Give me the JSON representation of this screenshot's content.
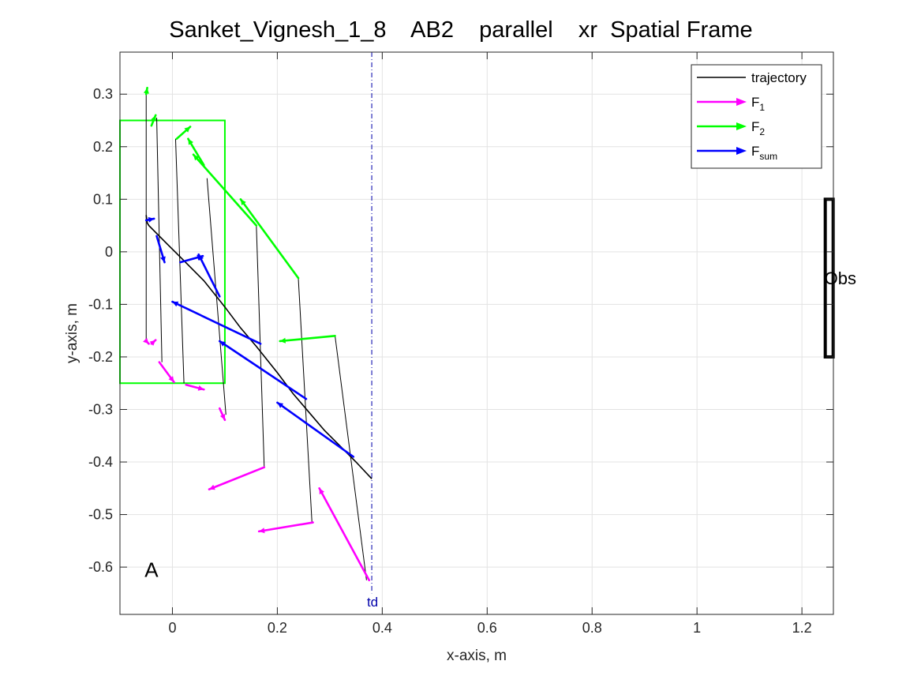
{
  "chart_data": {
    "type": "line",
    "title": "Sanket_Vignesh_1_8    AB2    parallel    xr  Spatial Frame",
    "xlabel": "x-axis, m",
    "ylabel": "y-axis, m",
    "xlim": [
      -0.1,
      1.26
    ],
    "ylim": [
      -0.69,
      0.38
    ],
    "xticks": [
      0,
      0.2,
      0.4,
      0.6,
      0.8,
      1,
      1.2
    ],
    "xtick_labels": [
      "0",
      "0.2",
      "0.4",
      "0.6",
      "0.8",
      "1",
      "1.2"
    ],
    "yticks": [
      0.3,
      0.2,
      0.1,
      0,
      -0.1,
      -0.2,
      -0.3,
      -0.4,
      -0.5,
      -0.6
    ],
    "ytick_labels": [
      "0.3",
      "0.2",
      "0.1",
      "0",
      "-0.1",
      "-0.2",
      "-0.3",
      "-0.4",
      "-0.5",
      "-0.6"
    ],
    "grid": true,
    "legend_position": "top-right",
    "legend": [
      {
        "key": "trajectory",
        "label": "trajectory",
        "sub": "",
        "color": "#000000",
        "style": "line"
      },
      {
        "key": "f1",
        "label": "F",
        "sub": "1",
        "color": "#ff00ff",
        "style": "arrow"
      },
      {
        "key": "f2",
        "label": "F",
        "sub": "2",
        "color": "#00ff00",
        "style": "arrow"
      },
      {
        "key": "fsum",
        "label": "F",
        "sub": "sum",
        "color": "#0000ff",
        "style": "arrow"
      }
    ],
    "trajectory": {
      "color": "#000000",
      "x": [
        -0.05,
        -0.048,
        -0.045,
        -0.03,
        -0.01,
        0.02,
        0.06,
        0.1,
        0.13,
        0.16,
        0.2,
        0.23,
        0.26,
        0.29,
        0.32,
        0.35,
        0.38
      ],
      "y": [
        0.07,
        0.055,
        0.05,
        0.035,
        0.015,
        -0.015,
        -0.055,
        -0.105,
        -0.145,
        -0.18,
        -0.23,
        -0.27,
        -0.305,
        -0.34,
        -0.37,
        -0.4,
        -0.432
      ]
    },
    "projection_lines": {
      "color": "#000000",
      "segments": [
        {
          "x": [
            -0.05,
            -0.05
          ],
          "y": [
            0.3,
            -0.17
          ]
        },
        {
          "x": [
            -0.03,
            -0.02
          ],
          "y": [
            0.255,
            -0.21
          ]
        },
        {
          "x": [
            0.006,
            0.022
          ],
          "y": [
            0.215,
            -0.25
          ]
        },
        {
          "x": [
            0.066,
            0.102
          ],
          "y": [
            0.14,
            -0.31
          ]
        },
        {
          "x": [
            0.16,
            0.175
          ],
          "y": [
            0.05,
            -0.41
          ]
        },
        {
          "x": [
            0.24,
            0.266
          ],
          "y": [
            -0.05,
            -0.515
          ]
        },
        {
          "x": [
            0.31,
            0.37
          ],
          "y": [
            -0.16,
            -0.625
          ]
        }
      ]
    },
    "f1_arrows": {
      "color": "#ff00ff",
      "arrows": [
        {
          "from": [
            -0.05,
            -0.17
          ],
          "to": [
            -0.045,
            -0.175
          ]
        },
        {
          "from": [
            -0.04,
            -0.175
          ],
          "to": [
            -0.032,
            -0.168
          ]
        },
        {
          "from": [
            -0.025,
            -0.21
          ],
          "to": [
            0.003,
            -0.248
          ]
        },
        {
          "from": [
            0.026,
            -0.253
          ],
          "to": [
            0.06,
            -0.262
          ]
        },
        {
          "from": [
            0.09,
            -0.298
          ],
          "to": [
            0.1,
            -0.32
          ]
        },
        {
          "from": [
            0.175,
            -0.41
          ],
          "to": [
            0.07,
            -0.452
          ]
        },
        {
          "from": [
            0.268,
            -0.515
          ],
          "to": [
            0.165,
            -0.532
          ]
        },
        {
          "from": [
            0.375,
            -0.625
          ],
          "to": [
            0.28,
            -0.45
          ]
        }
      ]
    },
    "f2_arrows": {
      "color": "#00ff00",
      "arrows": [
        {
          "from": [
            -0.05,
            0.3
          ],
          "to": [
            -0.048,
            0.312
          ]
        },
        {
          "from": [
            -0.04,
            0.24
          ],
          "to": [
            -0.032,
            0.26
          ]
        },
        {
          "from": [
            0.008,
            0.215
          ],
          "to": [
            0.034,
            0.238
          ]
        },
        {
          "from": [
            0.06,
            0.165
          ],
          "to": [
            0.03,
            0.215
          ]
        },
        {
          "from": [
            0.16,
            0.05
          ],
          "to": [
            0.04,
            0.185
          ]
        },
        {
          "from": [
            0.24,
            -0.05
          ],
          "to": [
            0.13,
            0.1
          ]
        },
        {
          "from": [
            0.31,
            -0.16
          ],
          "to": [
            0.205,
            -0.17
          ]
        }
      ]
    },
    "fsum_arrows": {
      "color": "#0000ff",
      "arrows": [
        {
          "from": [
            -0.05,
            0.06
          ],
          "to": [
            -0.035,
            0.063
          ]
        },
        {
          "from": [
            -0.03,
            0.03
          ],
          "to": [
            -0.015,
            -0.02
          ]
        },
        {
          "from": [
            0.015,
            -0.02
          ],
          "to": [
            0.058,
            -0.008
          ]
        },
        {
          "from": [
            0.09,
            -0.085
          ],
          "to": [
            0.05,
            -0.005
          ]
        },
        {
          "from": [
            0.168,
            -0.175
          ],
          "to": [
            0.0,
            -0.095
          ]
        },
        {
          "from": [
            0.255,
            -0.28
          ],
          "to": [
            0.09,
            -0.17
          ]
        },
        {
          "from": [
            0.345,
            -0.39
          ],
          "to": [
            0.2,
            -0.287
          ]
        }
      ]
    },
    "region_box": {
      "color": "#00ff00",
      "x": [
        -0.1,
        0.1
      ],
      "y": [
        -0.25,
        0.25
      ]
    },
    "obstacle": {
      "label": "Obs",
      "color": "#000000",
      "x": 1.252,
      "y": [
        -0.2,
        0.1
      ]
    },
    "td_line": {
      "label": "td",
      "color": "#0000aa",
      "x": 0.38
    },
    "annotation": {
      "label": "A",
      "x": -0.05,
      "y": -0.605
    }
  }
}
